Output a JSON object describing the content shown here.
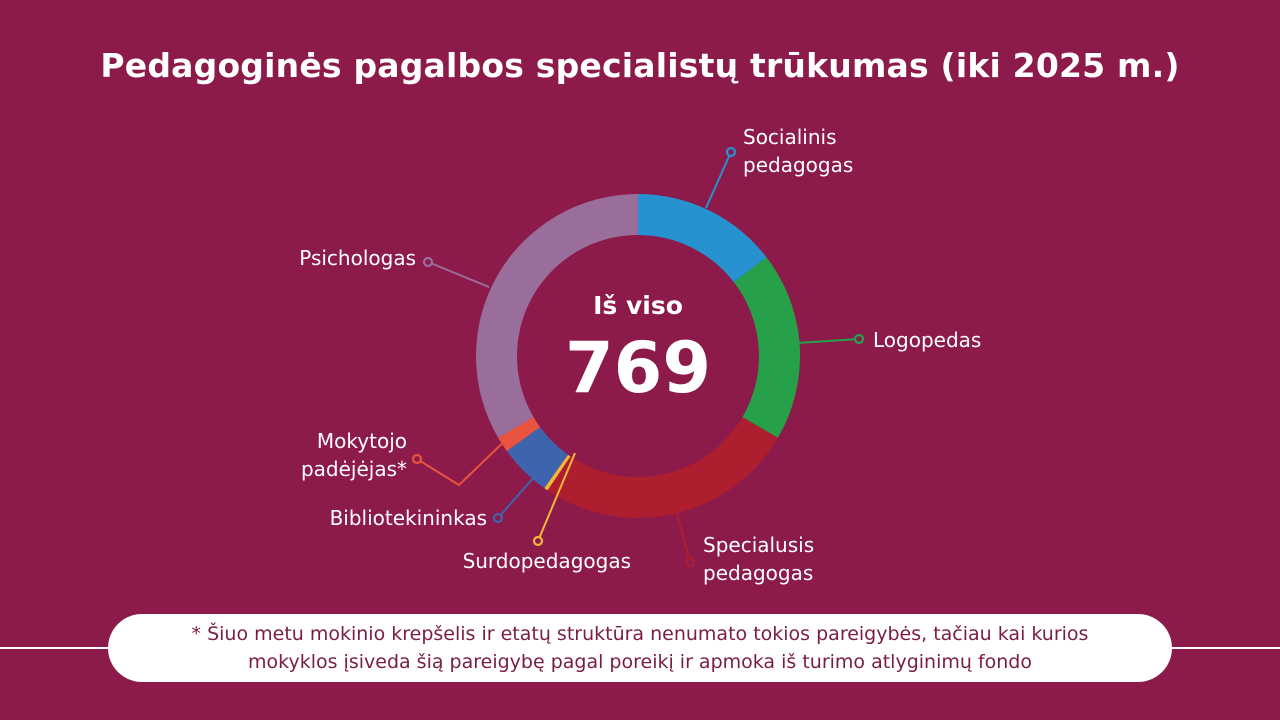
{
  "title": "Pedagoginės pagalbos specialistų trūkumas (iki 2025 m.)",
  "center": {
    "label": "Iš viso",
    "value": "769"
  },
  "chart_data": {
    "type": "pie",
    "title": "Pedagoginės pagalbos specialistų trūkumas (iki 2025 m.)",
    "total": 769,
    "slices": [
      {
        "label": [
          "Socialinis",
          "pedagogas"
        ],
        "value": 112,
        "color": "#2693d0"
      },
      {
        "label": [
          "Logopedas"
        ],
        "value": 145,
        "color": "#27a04a"
      },
      {
        "label": [
          "Specialusis",
          "pedagogas"
        ],
        "value": 200,
        "color": "#ad1f2f"
      },
      {
        "label": [
          "Surdopedagogas"
        ],
        "value": 3,
        "color": "#f5b63a"
      },
      {
        "label": [
          "Bibliotekininkas"
        ],
        "value": 40,
        "color": "#3f64ae"
      },
      {
        "label": [
          "Mokytojo",
          "padėjėjas*"
        ],
        "value": 12,
        "color": "#e8543d"
      },
      {
        "label": [
          "Psichologas"
        ],
        "value": 257,
        "color": "#9a6e9a"
      }
    ]
  },
  "footnote": {
    "line1": "* Šiuo metu mokinio krepšelis ir etatų struktūra nenumato tokios pareigybės, tačiau kai kurios",
    "line2": "mokyklos įsiveda šią pareigybę pagal poreikį ir apmoka iš turimo atlyginimų fondo"
  }
}
